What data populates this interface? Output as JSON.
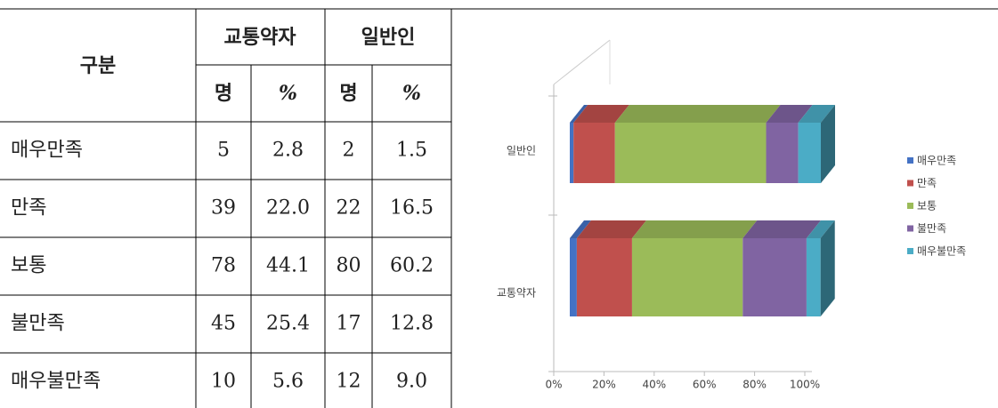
{
  "table": {
    "header": {
      "group": "구분",
      "columns": [
        "교통약자",
        "일반인"
      ],
      "subcolumns": [
        "명",
        "%",
        "명",
        "%"
      ]
    },
    "rows": [
      [
        "매우만족",
        "5",
        "2.8",
        "2",
        "1.5"
      ],
      [
        "만족",
        "39",
        "22.0",
        "22",
        "16.5"
      ],
      [
        "보통",
        "78",
        "44.1",
        "80",
        "60.2"
      ],
      [
        "불만족",
        "45",
        "25.4",
        "17",
        "12.8"
      ],
      [
        "매우불만족",
        "10",
        "5.6",
        "12",
        "9.0"
      ]
    ]
  },
  "chart_data": {
    "type": "bar3d_stacked_horizontal",
    "categories": [
      "교통약자",
      "일반인"
    ],
    "series": [
      {
        "name": "매우만족",
        "color": "#4472c4",
        "values": [
          2.8,
          1.5
        ]
      },
      {
        "name": "만족",
        "color": "#c0504d",
        "values": [
          22.0,
          16.5
        ]
      },
      {
        "name": "보통",
        "color": "#9bbb59",
        "values": [
          44.1,
          60.2
        ]
      },
      {
        "name": "불만족",
        "color": "#8064a2",
        "values": [
          25.4,
          12.8
        ]
      },
      {
        "name": "매우불만족",
        "color": "#4bacc6",
        "values": [
          5.6,
          9.0
        ]
      }
    ],
    "xlim": [
      0,
      100
    ],
    "xticks": [
      {
        "value": 0,
        "label": "0%"
      },
      {
        "value": 20,
        "label": "20%"
      },
      {
        "value": 40,
        "label": "40%"
      },
      {
        "value": 60,
        "label": "60%"
      },
      {
        "value": 80,
        "label": "80%"
      },
      {
        "value": 100,
        "label": "100%"
      }
    ],
    "legend": "right"
  }
}
